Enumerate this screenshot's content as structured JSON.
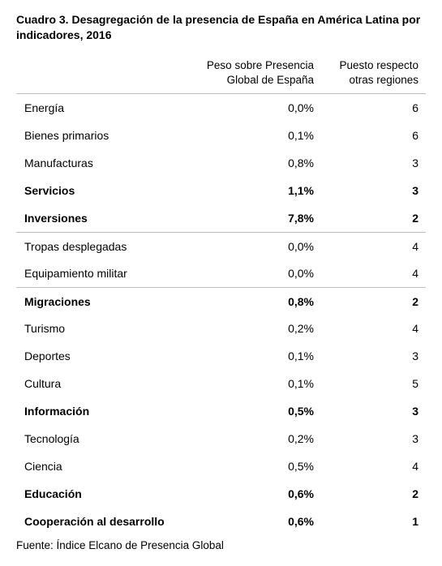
{
  "title": "Cuadro 3. Desagregación de la presencia de España en América Latina por indicadores, 2016",
  "table": {
    "headers": {
      "peso_line1": "Peso sobre Presencia",
      "peso_line2": "Global de España",
      "puesto_line1": "Puesto respecto",
      "puesto_line2": "otras regiones"
    },
    "rows": [
      {
        "name": "Energía",
        "peso": "0,0%",
        "puesto": "6",
        "bold": false,
        "sep": false
      },
      {
        "name": "Bienes primarios",
        "peso": "0,1%",
        "puesto": "6",
        "bold": false,
        "sep": false
      },
      {
        "name": "Manufacturas",
        "peso": "0,8%",
        "puesto": "3",
        "bold": false,
        "sep": false
      },
      {
        "name": "Servicios",
        "peso": "1,1%",
        "puesto": "3",
        "bold": true,
        "sep": false
      },
      {
        "name": "Inversiones",
        "peso": "7,8%",
        "puesto": "2",
        "bold": true,
        "sep": false
      },
      {
        "name": "Tropas desplegadas",
        "peso": "0,0%",
        "puesto": "4",
        "bold": false,
        "sep": true
      },
      {
        "name": "Equipamiento militar",
        "peso": "0,0%",
        "puesto": "4",
        "bold": false,
        "sep": false
      },
      {
        "name": "Migraciones",
        "peso": "0,8%",
        "puesto": "2",
        "bold": true,
        "sep": true
      },
      {
        "name": "Turismo",
        "peso": "0,2%",
        "puesto": "4",
        "bold": false,
        "sep": false
      },
      {
        "name": "Deportes",
        "peso": "0,1%",
        "puesto": "3",
        "bold": false,
        "sep": false
      },
      {
        "name": "Cultura",
        "peso": "0,1%",
        "puesto": "5",
        "bold": false,
        "sep": false
      },
      {
        "name": "Información",
        "peso": "0,5%",
        "puesto": "3",
        "bold": true,
        "sep": false
      },
      {
        "name": "Tecnología",
        "peso": "0,2%",
        "puesto": "3",
        "bold": false,
        "sep": false
      },
      {
        "name": "Ciencia",
        "peso": "0,5%",
        "puesto": "4",
        "bold": false,
        "sep": false
      },
      {
        "name": "Educación",
        "peso": "0,6%",
        "puesto": "2",
        "bold": true,
        "sep": false
      },
      {
        "name": "Cooperación al desarrollo",
        "peso": "0,6%",
        "puesto": "1",
        "bold": true,
        "sep": false
      }
    ]
  },
  "source": "Fuente: Índice Elcano de Presencia Global"
}
